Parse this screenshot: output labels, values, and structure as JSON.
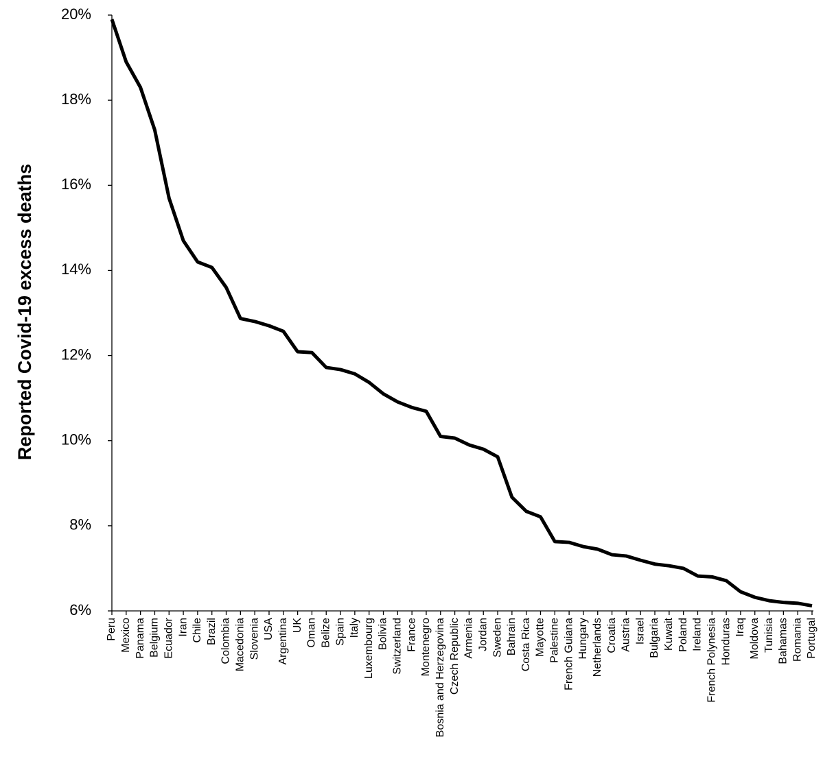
{
  "chart_data": {
    "type": "line",
    "y_label": "Reported Covid-19 excess deaths",
    "categories": [
      "Peru",
      "Mexico",
      "Panama",
      "Belgium",
      "Ecuador",
      "Iran",
      "Chile",
      "Brazil",
      "Colombia",
      "Macedonia",
      "Slovenia",
      "USA",
      "Argentina",
      "UK",
      "Oman",
      "Belize",
      "Spain",
      "Italy",
      "Luxembourg",
      "Bolivia",
      "Switzerland",
      "France",
      "Montenegro",
      "Bosnia and Herzegovina",
      "Czech Republic",
      "Armenia",
      "Jordan",
      "Sweden",
      "Bahrain",
      "Costa Rica",
      "Mayotte",
      "Palestine",
      "French Guiana",
      "Hungary",
      "Netherlands",
      "Croatia",
      "Austria",
      "Israel",
      "Bulgaria",
      "Kuwait",
      "Poland",
      "Ireland",
      "French Polynesia",
      "Honduras",
      "Iraq",
      "Moldova",
      "Tunisia",
      "Bahamas",
      "Romania",
      "Portugal"
    ],
    "values": [
      19.9,
      18.9,
      18.3,
      17.3,
      15.7,
      14.7,
      14.2,
      14.07,
      13.6,
      12.87,
      12.8,
      12.7,
      12.57,
      12.09,
      12.07,
      11.72,
      11.67,
      11.57,
      11.37,
      11.1,
      10.91,
      10.78,
      10.69,
      10.1,
      10.06,
      9.9,
      9.8,
      9.62,
      8.67,
      8.34,
      8.21,
      7.63,
      7.61,
      7.51,
      7.45,
      7.32,
      7.29,
      7.19,
      7.1,
      7.06,
      7.0,
      6.82,
      6.8,
      6.71,
      6.45,
      6.32,
      6.24,
      6.2,
      6.18,
      6.12
    ],
    "color": "#000000",
    "ylim": [
      6,
      20
    ],
    "yticks": [
      {
        "value": 6,
        "label": "6%"
      },
      {
        "value": 8,
        "label": "8%"
      },
      {
        "value": 10,
        "label": "10%"
      },
      {
        "value": 12,
        "label": "12%"
      },
      {
        "value": 14,
        "label": "14%"
      },
      {
        "value": 16,
        "label": "16%"
      },
      {
        "value": 18,
        "label": "18%"
      },
      {
        "value": 20,
        "label": "20%"
      }
    ],
    "grid": false
  }
}
